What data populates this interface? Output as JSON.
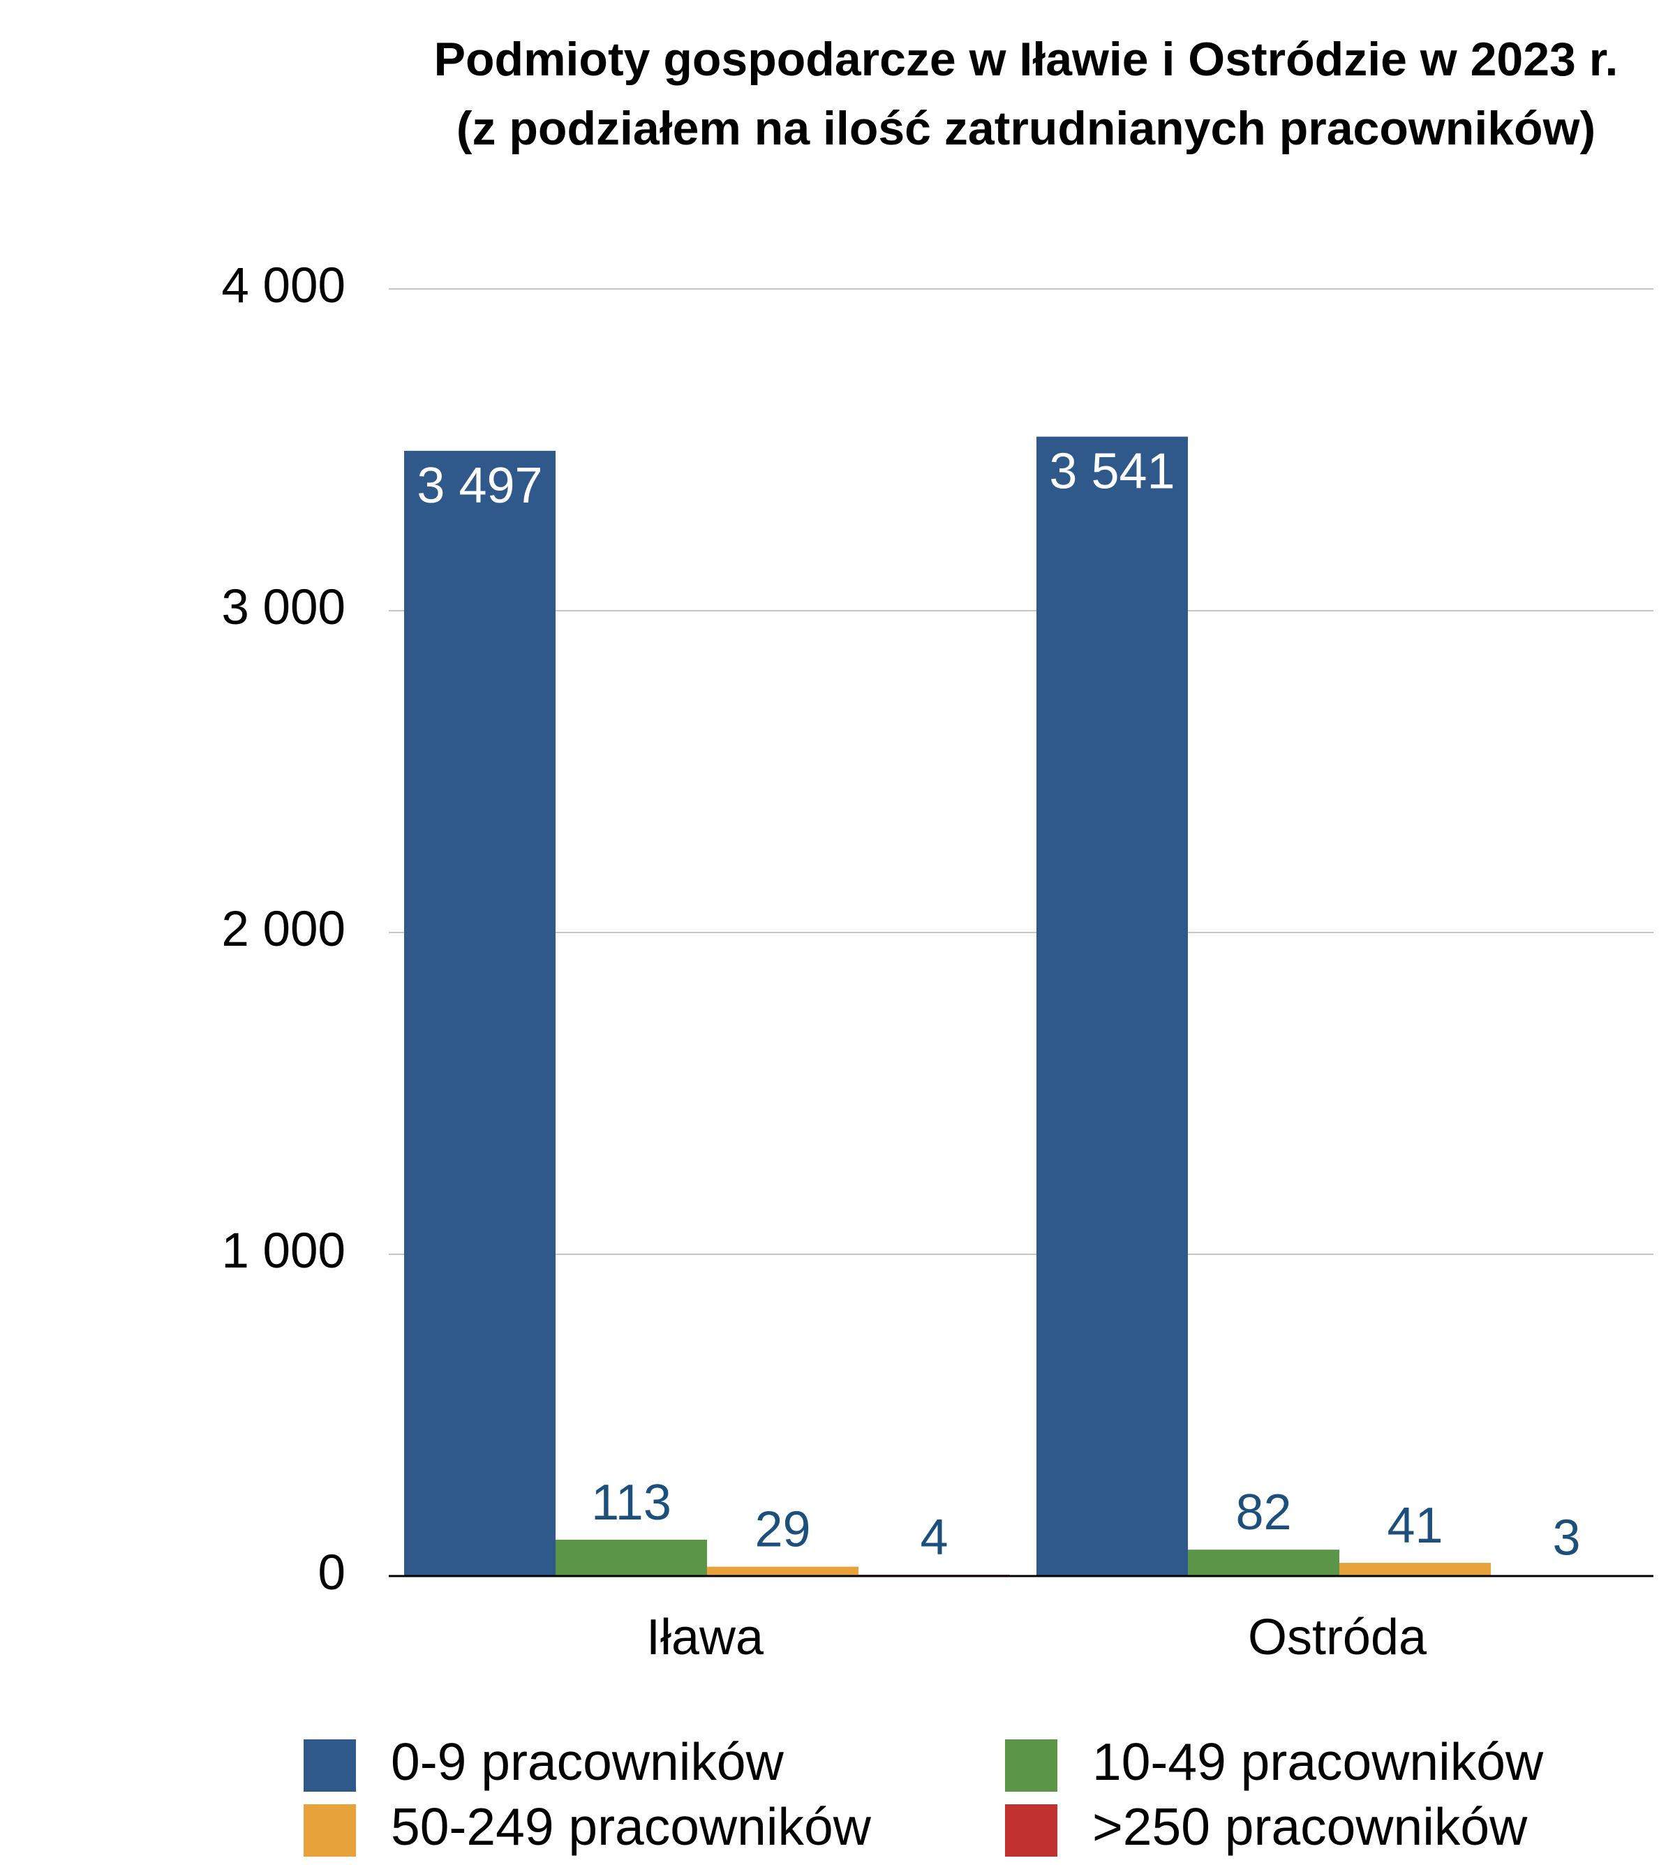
{
  "chart_data": {
    "type": "bar",
    "title": "Podmioty gospodarcze w Iławie i Ostródzie w 2023 r. (z podziałem na ilość zatrudnianych pracowników)",
    "categories": [
      "Iława",
      "Ostróda"
    ],
    "series": [
      {
        "name": "0-9 pracowników",
        "color": "#2f588b",
        "values": [
          3497,
          3541
        ],
        "value_labels": [
          "3 497",
          "3 541"
        ]
      },
      {
        "name": "10-49 pracowników",
        "color": "#5b9548",
        "values": [
          113,
          82
        ]
      },
      {
        "name": "50-249 pracowników",
        "color": "#e8a23b",
        "values": [
          29,
          41
        ]
      },
      {
        "name": ">250 pracowników",
        "color": "#c0312f",
        "values": [
          4,
          3
        ]
      }
    ],
    "ylim": [
      0,
      4000
    ],
    "yticks": [
      0,
      {
        "value": 1000,
        "label": "1 000"
      },
      {
        "value": 2000,
        "label": "2 000"
      },
      {
        "value": 3000,
        "label": "3 000"
      },
      {
        "value": 4000,
        "label": "4 000"
      }
    ],
    "grid": true
  }
}
